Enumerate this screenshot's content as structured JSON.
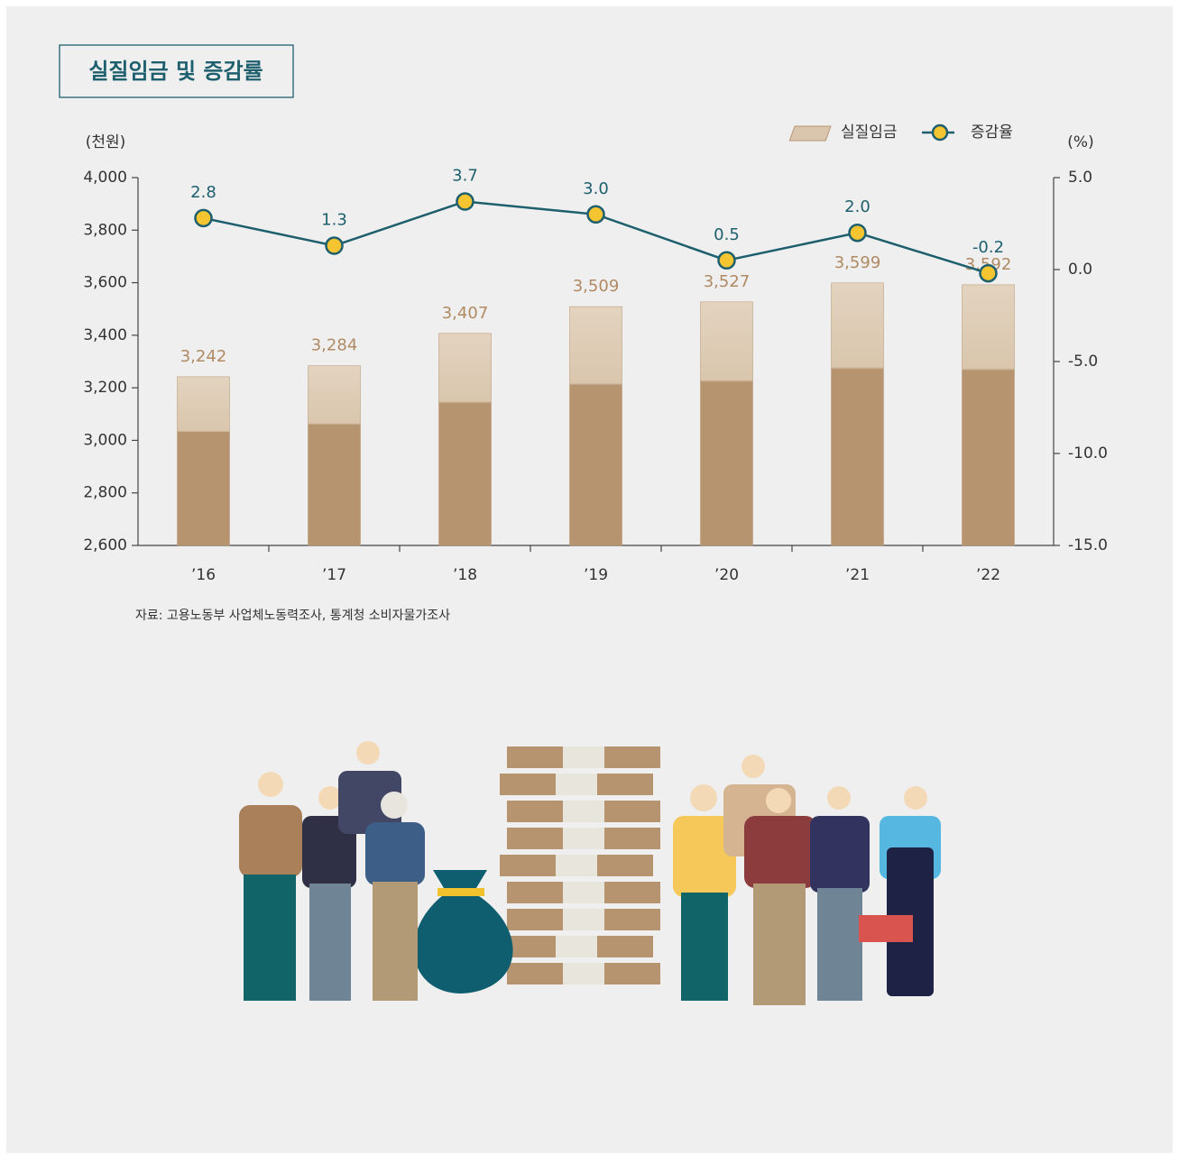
{
  "chart_data": {
    "type": "bar_line",
    "title": "실질임금 및 증감률",
    "y_unit": "(천원)",
    "y2_unit": "(%)",
    "source": "자료: 고용노동부 사업체노동력조사, 통계청 소비자물가조사",
    "categories": [
      "’16",
      "’17",
      "’18",
      "’19",
      "’20",
      "’21",
      "’22"
    ],
    "series": [
      {
        "name": "실질임금",
        "type": "bar",
        "color": "#b5946f",
        "label_color": "#b08a63",
        "values": [
          3242,
          3284,
          3407,
          3509,
          3527,
          3599,
          3592
        ],
        "value_labels": [
          "3,242",
          "3,284",
          "3,407",
          "3,509",
          "3,527",
          "3,599",
          "3,592"
        ]
      },
      {
        "name": "증감율",
        "type": "line",
        "axis": "y2",
        "color": "#1e5f6e",
        "marker_color": "#f5c431",
        "values": [
          2.8,
          1.3,
          3.7,
          3.0,
          0.5,
          2.0,
          -0.2
        ],
        "value_labels": [
          "2.8",
          "1.3",
          "3.7",
          "3.0",
          "0.5",
          "2.0",
          "-0.2"
        ]
      }
    ],
    "ylim": [
      2600,
      4000
    ],
    "yticks": [
      {
        "value": 2600,
        "label": "2,600"
      },
      {
        "value": 2800,
        "label": "2,800"
      },
      {
        "value": 3000,
        "label": "3,000"
      },
      {
        "value": 3200,
        "label": "3,200"
      },
      {
        "value": 3400,
        "label": "3,400"
      },
      {
        "value": 3600,
        "label": "3,600"
      },
      {
        "value": 3800,
        "label": "3,800"
      },
      {
        "value": 4000,
        "label": "4,000"
      }
    ],
    "y2lim": [
      -15,
      5
    ],
    "y2ticks": [
      {
        "value": -15,
        "label": "-15.0"
      },
      {
        "value": -10,
        "label": "-10.0"
      },
      {
        "value": -5,
        "label": "-5.0"
      },
      {
        "value": 0,
        "label": "0.0"
      },
      {
        "value": 5,
        "label": "5.0"
      }
    ],
    "grid": false
  }
}
